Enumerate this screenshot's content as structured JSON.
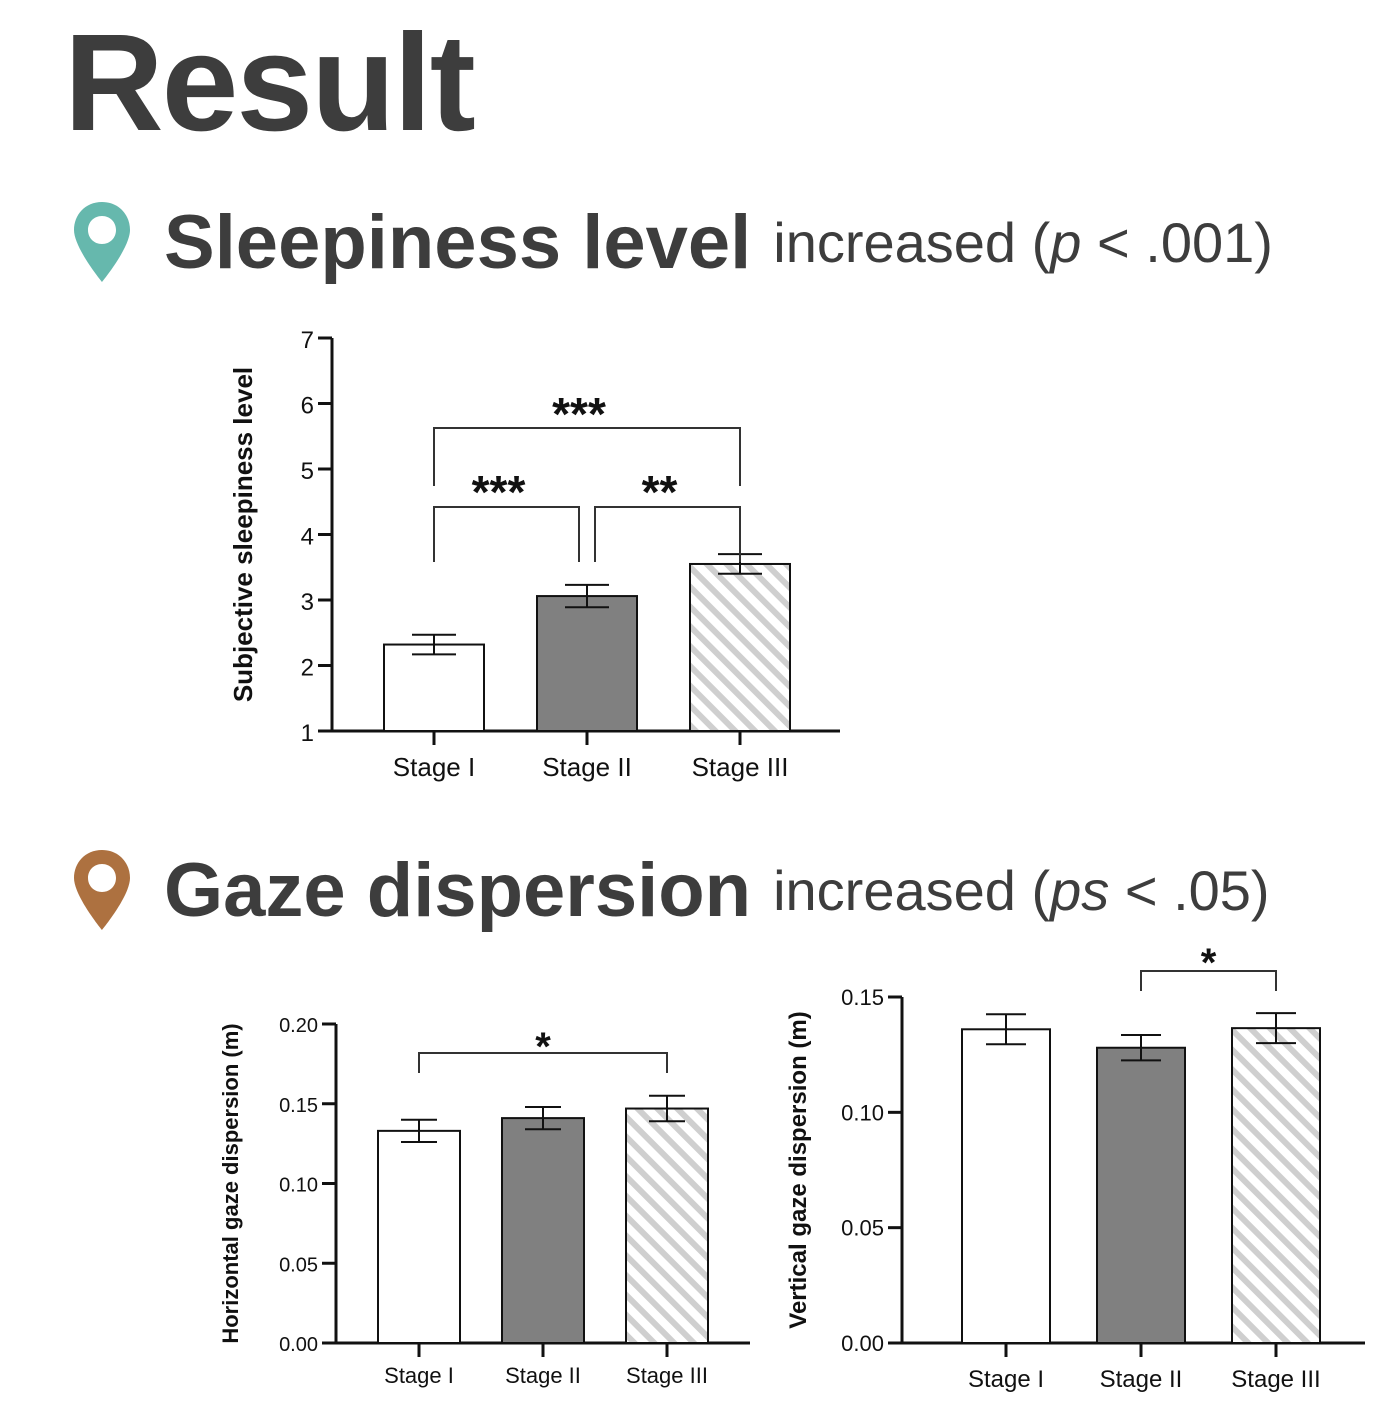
{
  "title": "Result",
  "sections": [
    {
      "heading": "Sleepiness level",
      "result_text": "increased",
      "stat_open": "(",
      "stat_var": "p",
      "stat_rest": " < .001)",
      "pin_color": "#66b8ad"
    },
    {
      "heading": "Gaze dispersion",
      "result_text": "increased",
      "stat_open": "(",
      "stat_var": "ps",
      "stat_rest": " < .05)",
      "pin_color": "#ad7140"
    }
  ],
  "chart_data": [
    {
      "type": "bar",
      "categories": [
        "Stage I",
        "Stage II",
        "Stage III"
      ],
      "values": [
        2.32,
        3.06,
        3.55
      ],
      "errors": [
        0.15,
        0.17,
        0.15
      ],
      "ylabel": "Subjective sleepiness level",
      "ylim": [
        1,
        7
      ],
      "yticks": [
        "1",
        "2",
        "3",
        "4",
        "5",
        "6",
        "7"
      ],
      "bar_fills": [
        "white",
        "#808080",
        "hatch"
      ],
      "significance": [
        {
          "from": 0,
          "to": 2,
          "label": "***"
        },
        {
          "from": 0,
          "to": 1,
          "label": "***"
        },
        {
          "from": 1,
          "to": 2,
          "label": "**"
        }
      ]
    },
    {
      "type": "bar",
      "categories": [
        "Stage I",
        "Stage II",
        "Stage III"
      ],
      "values": [
        0.133,
        0.141,
        0.147
      ],
      "errors": [
        0.007,
        0.007,
        0.008
      ],
      "ylabel": "Horizontal gaze dispersion (m)",
      "ylim": [
        0,
        0.2
      ],
      "yticks": [
        "0.00",
        "0.05",
        "0.10",
        "0.15",
        "0.20"
      ],
      "bar_fills": [
        "white",
        "#808080",
        "hatch"
      ],
      "significance": [
        {
          "from": 0,
          "to": 2,
          "label": "*"
        }
      ]
    },
    {
      "type": "bar",
      "categories": [
        "Stage I",
        "Stage II",
        "Stage III"
      ],
      "values": [
        0.136,
        0.128,
        0.1365
      ],
      "errors": [
        0.0065,
        0.0055,
        0.0065
      ],
      "ylabel": "Vertical gaze dispersion (m)",
      "ylim": [
        0,
        0.15
      ],
      "yticks": [
        "0.00",
        "0.05",
        "0.10",
        "0.15"
      ],
      "bar_fills": [
        "white",
        "#808080",
        "hatch"
      ],
      "significance": [
        {
          "from": 1,
          "to": 2,
          "label": "*"
        }
      ]
    }
  ]
}
